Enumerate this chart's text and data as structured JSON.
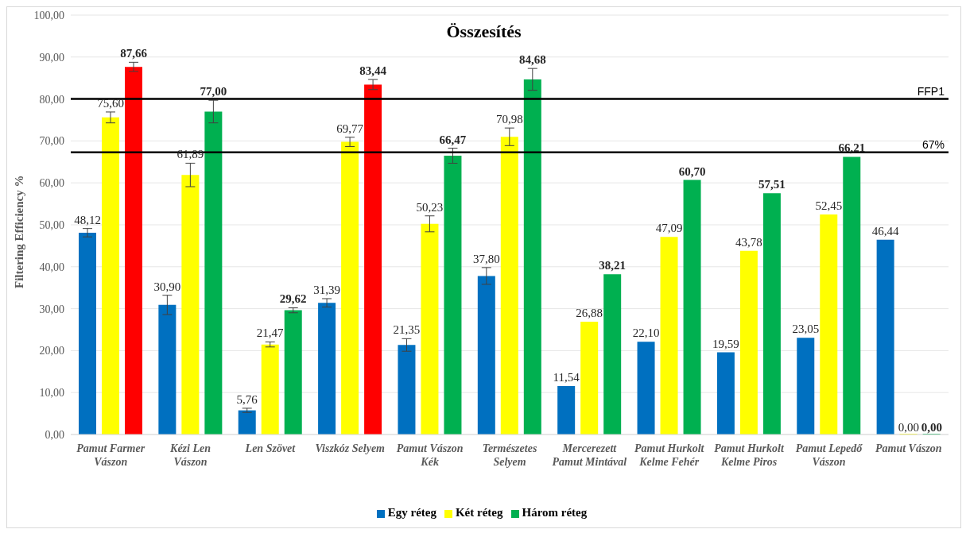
{
  "chart_data": {
    "type": "bar",
    "title": "Összesítés",
    "ylabel": "Filtering Efficiency %",
    "categories": [
      "Pamut Farmer Vászon",
      "Kézi Len Vászon",
      "Len Szövet",
      "Viszkóz Selyem",
      "Pamut Vászon Kék",
      "Természetes Selyem",
      "Mercerezett Pamut Mintával",
      "Pamut Hurkolt Kelme Fehér",
      "Pamut Hurkolt Kelme Piros",
      "Pamut Lepedő Vászon",
      "Pamut Vászon"
    ],
    "series": [
      {
        "name": "Egy réteg",
        "color": "#0070c0",
        "values": [
          48.12,
          30.9,
          5.76,
          31.39,
          21.35,
          37.8,
          11.54,
          22.1,
          19.59,
          23.05,
          46.44
        ],
        "errors": [
          1,
          2.3,
          0.5,
          1,
          1.5,
          2,
          null,
          null,
          null,
          null,
          null
        ],
        "value_labels": [
          "48,12",
          "30,90",
          "5,76",
          "31,39",
          "21,35",
          "37,80",
          "11,54",
          "22,10",
          "19,59",
          "23,05",
          "46,44"
        ]
      },
      {
        "name": "Két réteg",
        "color": "#ffff00",
        "values": [
          75.6,
          61.89,
          21.47,
          69.77,
          50.23,
          70.98,
          26.88,
          47.09,
          43.78,
          52.45,
          0
        ],
        "errors": [
          1.3,
          2.8,
          0.6,
          1.1,
          1.9,
          2.1,
          null,
          null,
          null,
          null,
          null
        ],
        "value_labels": [
          "75,60",
          "61,89",
          "21,47",
          "69,77",
          "50,23",
          "70,98",
          "26,88",
          "47,09",
          "43,78",
          "52,45",
          "0,00"
        ]
      },
      {
        "name": "Három réteg",
        "color": "#00b050",
        "colors": [
          "#ff0000",
          "#00b050",
          "#00b050",
          "#ff0000",
          "#00b050",
          "#00b050",
          "#00b050",
          "#00b050",
          "#00b050",
          "#00b050",
          "#00b050"
        ],
        "values": [
          87.66,
          77.0,
          29.62,
          83.44,
          66.47,
          84.68,
          38.21,
          60.7,
          57.51,
          66.21,
          0
        ],
        "errors": [
          1.1,
          2.7,
          0.6,
          1.2,
          1.8,
          2.6,
          null,
          null,
          null,
          null,
          null
        ],
        "value_labels": [
          "87,66",
          "77,00",
          "29,62",
          "83,44",
          "66,47",
          "84,68",
          "38,21",
          "60,70",
          "57,51",
          "66,21",
          "0,00"
        ]
      }
    ],
    "ylim": [
      0,
      100
    ],
    "yticks": [
      {
        "value": 0,
        "label": "0,00"
      },
      {
        "value": 10,
        "label": "10,00"
      },
      {
        "value": 20,
        "label": "20,00"
      },
      {
        "value": 30,
        "label": "30,00"
      },
      {
        "value": 40,
        "label": "40,00"
      },
      {
        "value": 50,
        "label": "50,00"
      },
      {
        "value": 60,
        "label": "60,00"
      },
      {
        "value": 70,
        "label": "70,00"
      },
      {
        "value": 80,
        "label": "80,00"
      },
      {
        "value": 90,
        "label": "90,00"
      },
      {
        "value": 100,
        "label": "100,00"
      }
    ],
    "ref_lines": [
      {
        "axis": "y",
        "value": 80,
        "label": "FFP1",
        "color": "#000000"
      },
      {
        "axis": "y",
        "value": 67.3,
        "label": "67%",
        "color": "#000000"
      }
    ],
    "grid": "y",
    "legend": "bottom"
  }
}
